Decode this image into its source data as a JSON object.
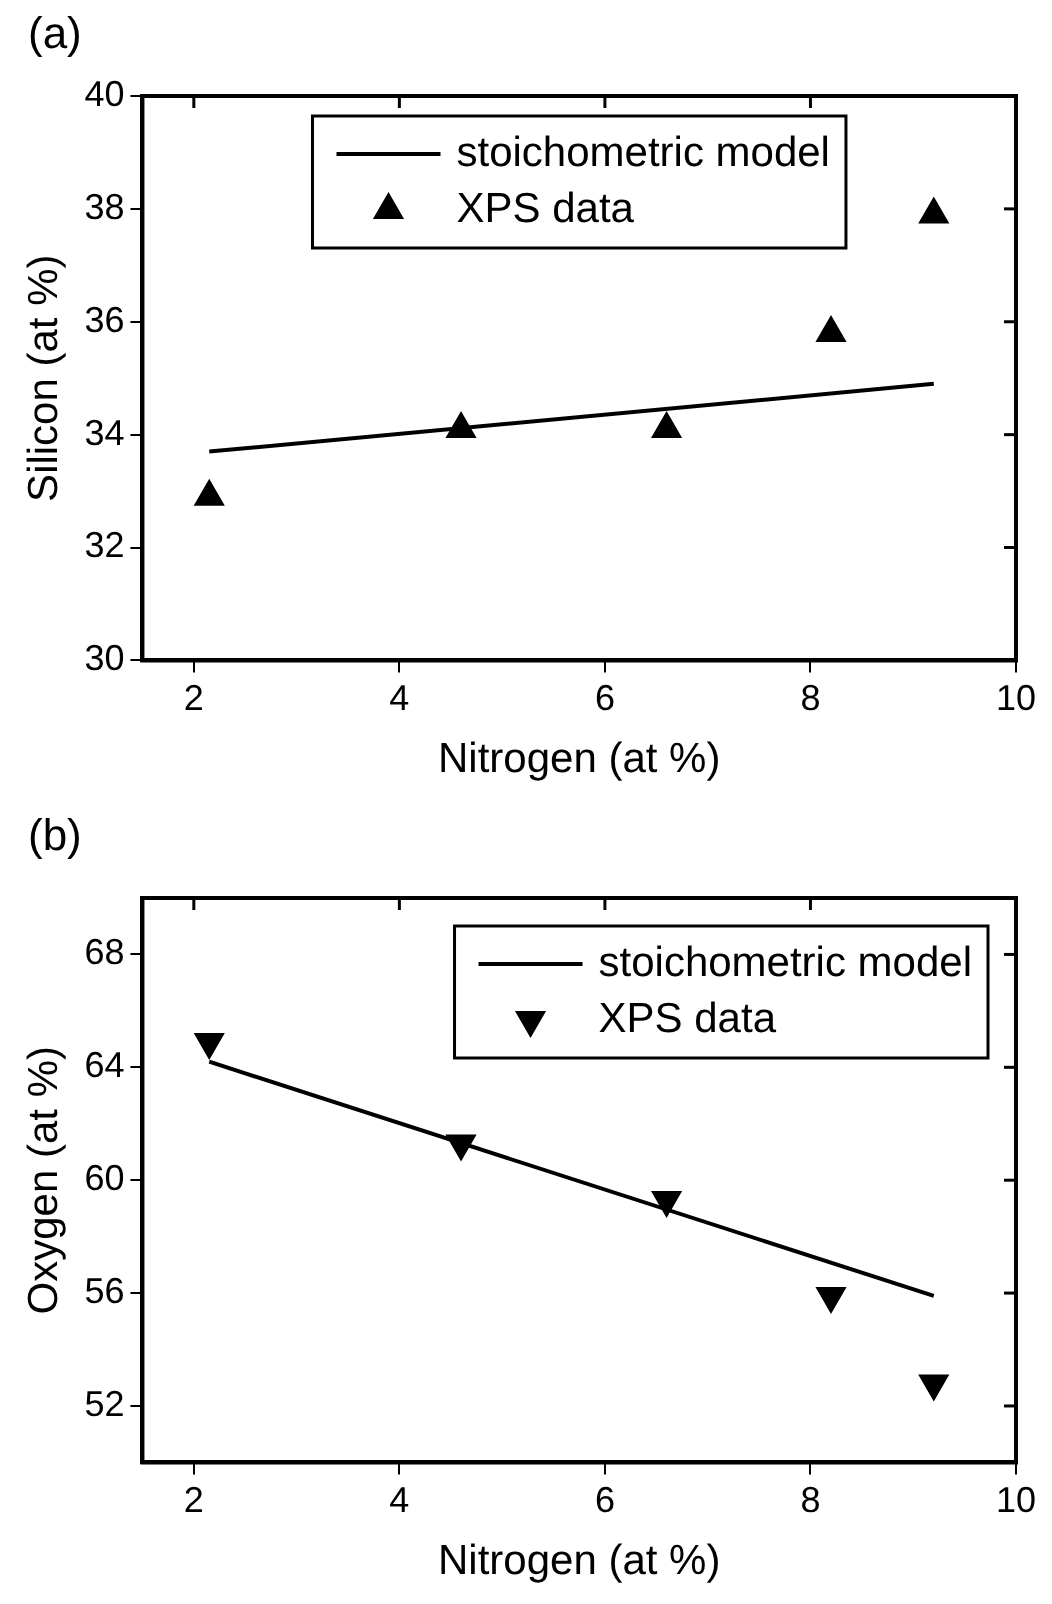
{
  "chart_data": [
    {
      "type": "scatter",
      "title": "(a)",
      "xlabel": "Nitrogen (at %)",
      "ylabel": "Silicon (at %)",
      "xlim": [
        1.5,
        10
      ],
      "xticks": [
        2,
        4,
        6,
        8,
        10
      ],
      "ylim": [
        30,
        40
      ],
      "yticks": [
        30,
        32,
        34,
        36,
        38,
        40
      ],
      "grid": false,
      "legend": "top",
      "series": [
        {
          "name": "stoichometric model",
          "type": "line",
          "color": "#000000",
          "x": [
            2.15,
            9.2
          ],
          "values": [
            33.7,
            34.9
          ],
          "marker": "none",
          "line_style": "solid"
        },
        {
          "name": "XPS data",
          "type": "scatter",
          "color": "#000000",
          "x": [
            2.15,
            4.6,
            6.6,
            8.2,
            9.2
          ],
          "values": [
            32.9,
            34.1,
            34.1,
            35.8,
            37.9
          ],
          "marker": "triangle"
        }
      ]
    },
    {
      "type": "scatter",
      "title": "(b)",
      "xlabel": "Nitrogen (at %)",
      "ylabel": "Oxygen (at %)",
      "xlim": [
        1.5,
        10
      ],
      "xticks": [
        2,
        4,
        6,
        8,
        10
      ],
      "ylim": [
        50,
        70
      ],
      "yticks": [
        52,
        56,
        60,
        64,
        68
      ],
      "grid": false,
      "legend": "top right",
      "series": [
        {
          "name": "stoichometric model",
          "type": "line",
          "color": "#000000",
          "x": [
            2.15,
            9.2
          ],
          "values": [
            64.2,
            55.9
          ],
          "marker": "none",
          "line_style": "solid"
        },
        {
          "name": "XPS data",
          "type": "scatter",
          "color": "#000000",
          "x": [
            2.15,
            4.6,
            6.6,
            8.2,
            9.2
          ],
          "values": [
            64.9,
            61.3,
            59.3,
            55.9,
            52.8
          ],
          "marker": "triangle-down"
        }
      ]
    }
  ]
}
